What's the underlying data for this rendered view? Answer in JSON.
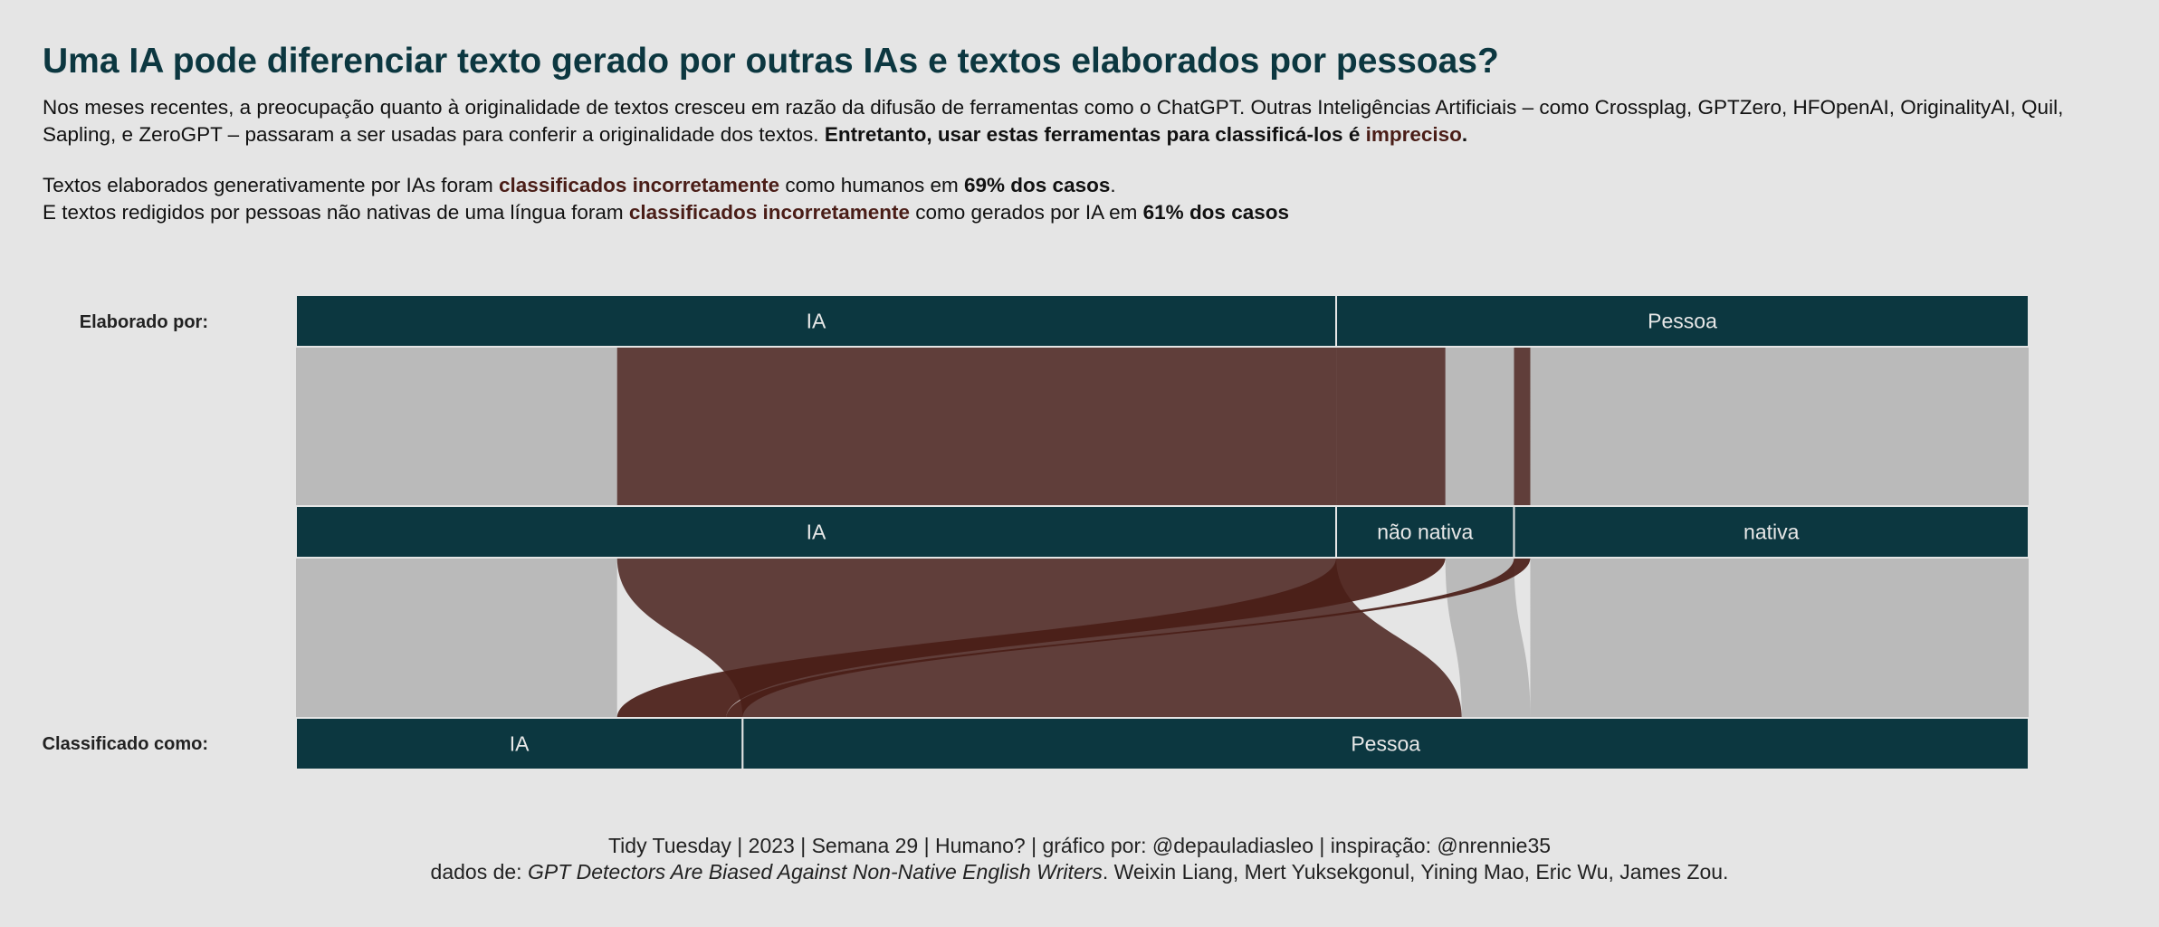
{
  "header": {
    "title": "Uma IA pode diferenciar texto gerado por outras IAs e textos elaborados por pessoas?",
    "para1_a": "Nos meses recentes, a preocupação quanto à originalidade de textos cresceu em razão da difusão de ferramentas como o ChatGPT. Outras Inteligências Artificiais – como Crossplag, GPTZero, HFOpenAI, OriginalityAI, Quil, Sapling, e ZeroGPT – passaram a ser usadas para conferir a originalidade dos textos. ",
    "para1_b": "Entretanto, usar estas ferramentas para classificá-los é ",
    "para1_c": "impreciso",
    "para1_d": ".",
    "line2_a": "Textos elaborados generativamente por IAs foram ",
    "line2_b": "classificados incorretamente",
    "line2_c": " como humanos em ",
    "line2_d": "69% dos casos",
    "line2_e": ".",
    "line3_a": "E textos redigidos por pessoas não nativas de uma língua foram ",
    "line3_b": "classificados incorretamente",
    "line3_c": " como gerados por IA em ",
    "line3_d": "61% dos casos"
  },
  "row_labels": {
    "top": "Elaborado por:",
    "bottom": "Classificado como:"
  },
  "chart_data": {
    "type": "alluvial",
    "axes": [
      {
        "name": "Elaborado por:",
        "categories": [
          "IA",
          "Pessoa"
        ]
      },
      {
        "name": "",
        "categories": [
          "IA",
          "não nativa",
          "nativa"
        ]
      },
      {
        "name": "Classificado como:",
        "categories": [
          "IA",
          "Pessoa"
        ]
      }
    ],
    "flows": [
      {
        "source": "IA",
        "middle": "IA",
        "target": "IA",
        "value": 1123,
        "highlight": false
      },
      {
        "source": "IA",
        "middle": "IA",
        "target": "Pessoa",
        "value": 2515,
        "highlight": true
      },
      {
        "source": "Pessoa",
        "middle": "não nativa",
        "target": "IA",
        "value": 382,
        "highlight": true
      },
      {
        "source": "Pessoa",
        "middle": "não nativa",
        "target": "Pessoa",
        "value": 240,
        "highlight": false
      },
      {
        "source": "Pessoa",
        "middle": "nativa",
        "target": "IA",
        "value": 57,
        "highlight": true
      },
      {
        "source": "Pessoa",
        "middle": "nativa",
        "target": "Pessoa",
        "value": 1743,
        "highlight": false
      }
    ],
    "stats": {
      "ia_misclassified_pct": 69,
      "non_native_misclassified_pct": 61
    },
    "colors": {
      "background": "#e5e5e5",
      "node": "#0c3740",
      "node_text": "#e8e8e8",
      "flow_highlight": "#603e3a",
      "flow_highlight_dark": "#4a1d17",
      "flow_grey": "#bababa"
    }
  },
  "caption": {
    "line1": "Tidy Tuesday | 2023 | Semana 29 | Humano? | gráfico por: @depauladiasleo | inspiração: @nrennie35",
    "line2_a": "dados de: ",
    "line2_b": "GPT Detectors Are Biased Against Non-Native English Writers",
    "line2_c": ". Weixin Liang, Mert Yuksekgonul, Yining Mao, Eric Wu, James Zou."
  }
}
